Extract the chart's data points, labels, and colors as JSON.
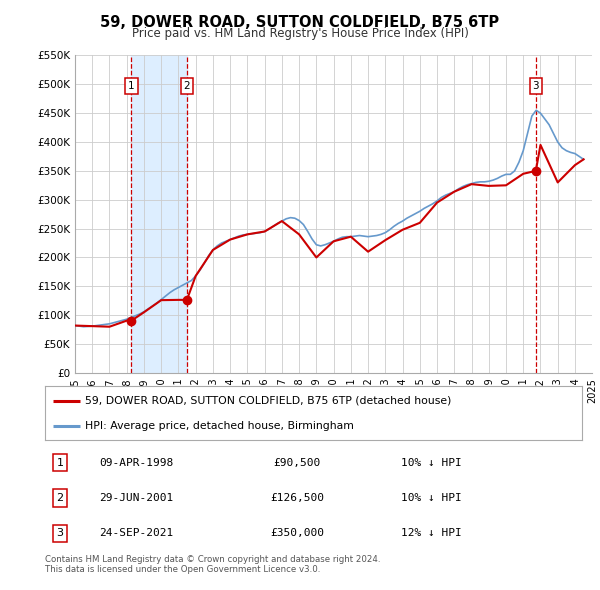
{
  "title": "59, DOWER ROAD, SUTTON COLDFIELD, B75 6TP",
  "subtitle": "Price paid vs. HM Land Registry's House Price Index (HPI)",
  "red_label": "59, DOWER ROAD, SUTTON COLDFIELD, B75 6TP (detached house)",
  "blue_label": "HPI: Average price, detached house, Birmingham",
  "sale_points": [
    {
      "num": 1,
      "date_num": 1998.27,
      "price": 90500,
      "label": "09-APR-1998",
      "price_str": "£90,500",
      "hpi_str": "10% ↓ HPI"
    },
    {
      "num": 2,
      "date_num": 2001.49,
      "price": 126500,
      "label": "29-JUN-2001",
      "price_str": "£126,500",
      "hpi_str": "10% ↓ HPI"
    },
    {
      "num": 3,
      "date_num": 2021.73,
      "price": 350000,
      "label": "24-SEP-2021",
      "price_str": "£350,000",
      "hpi_str": "12% ↓ HPI"
    }
  ],
  "copyright": "Contains HM Land Registry data © Crown copyright and database right 2024.\nThis data is licensed under the Open Government Licence v3.0.",
  "ylim": [
    0,
    550000
  ],
  "xlim": [
    1995,
    2025
  ],
  "yticks": [
    0,
    50000,
    100000,
    150000,
    200000,
    250000,
    300000,
    350000,
    400000,
    450000,
    500000,
    550000
  ],
  "ytick_labels": [
    "£0",
    "£50K",
    "£100K",
    "£150K",
    "£200K",
    "£250K",
    "£300K",
    "£350K",
    "£400K",
    "£450K",
    "£500K",
    "£550K"
  ],
  "xticks": [
    1995,
    1996,
    1997,
    1998,
    1999,
    2000,
    2001,
    2002,
    2003,
    2004,
    2005,
    2006,
    2007,
    2008,
    2009,
    2010,
    2011,
    2012,
    2013,
    2014,
    2015,
    2016,
    2017,
    2018,
    2019,
    2020,
    2021,
    2022,
    2023,
    2024,
    2025
  ],
  "red_color": "#cc0000",
  "blue_color": "#6699cc",
  "shade_color": "#ddeeff",
  "grid_color": "#cccccc",
  "background_color": "#ffffff",
  "vline_color": "#cc0000",
  "hpi_data": {
    "x": [
      1995.0,
      1995.25,
      1995.5,
      1995.75,
      1996.0,
      1996.25,
      1996.5,
      1996.75,
      1997.0,
      1997.25,
      1997.5,
      1997.75,
      1998.0,
      1998.25,
      1998.5,
      1998.75,
      1999.0,
      1999.25,
      1999.5,
      1999.75,
      2000.0,
      2000.25,
      2000.5,
      2000.75,
      2001.0,
      2001.25,
      2001.5,
      2001.75,
      2002.0,
      2002.25,
      2002.5,
      2002.75,
      2003.0,
      2003.25,
      2003.5,
      2003.75,
      2004.0,
      2004.25,
      2004.5,
      2004.75,
      2005.0,
      2005.25,
      2005.5,
      2005.75,
      2006.0,
      2006.25,
      2006.5,
      2006.75,
      2007.0,
      2007.25,
      2007.5,
      2007.75,
      2008.0,
      2008.25,
      2008.5,
      2008.75,
      2009.0,
      2009.25,
      2009.5,
      2009.75,
      2010.0,
      2010.25,
      2010.5,
      2010.75,
      2011.0,
      2011.25,
      2011.5,
      2011.75,
      2012.0,
      2012.25,
      2012.5,
      2012.75,
      2013.0,
      2013.25,
      2013.5,
      2013.75,
      2014.0,
      2014.25,
      2014.5,
      2014.75,
      2015.0,
      2015.25,
      2015.5,
      2015.75,
      2016.0,
      2016.25,
      2016.5,
      2016.75,
      2017.0,
      2017.25,
      2017.5,
      2017.75,
      2018.0,
      2018.25,
      2018.5,
      2018.75,
      2019.0,
      2019.25,
      2019.5,
      2019.75,
      2020.0,
      2020.25,
      2020.5,
      2020.75,
      2021.0,
      2021.25,
      2021.5,
      2021.75,
      2022.0,
      2022.25,
      2022.5,
      2022.75,
      2023.0,
      2023.25,
      2023.5,
      2023.75,
      2024.0,
      2024.25,
      2024.5
    ],
    "y": [
      82000,
      81000,
      80000,
      80500,
      81000,
      82000,
      83000,
      84000,
      85000,
      87000,
      89000,
      91000,
      93000,
      96000,
      99000,
      102000,
      106000,
      111000,
      116000,
      121000,
      127000,
      133000,
      139000,
      144000,
      148000,
      152000,
      156000,
      160000,
      168000,
      178000,
      190000,
      203000,
      213000,
      220000,
      225000,
      228000,
      231000,
      234000,
      237000,
      239000,
      240000,
      241000,
      242000,
      243000,
      245000,
      249000,
      254000,
      259000,
      263000,
      267000,
      269000,
      268000,
      264000,
      257000,
      245000,
      232000,
      222000,
      220000,
      222000,
      225000,
      228000,
      232000,
      235000,
      236000,
      236000,
      237000,
      238000,
      237000,
      236000,
      237000,
      238000,
      240000,
      243000,
      248000,
      254000,
      259000,
      263000,
      268000,
      272000,
      276000,
      280000,
      285000,
      289000,
      293000,
      298000,
      304000,
      308000,
      311000,
      314000,
      319000,
      323000,
      326000,
      328000,
      330000,
      331000,
      331000,
      332000,
      334000,
      337000,
      341000,
      344000,
      344000,
      350000,
      365000,
      385000,
      415000,
      445000,
      455000,
      450000,
      440000,
      430000,
      415000,
      400000,
      390000,
      385000,
      382000,
      380000,
      375000,
      370000
    ]
  },
  "red_data": {
    "x": [
      1995.0,
      1996.0,
      1997.0,
      1998.0,
      1998.27,
      1999.0,
      2000.0,
      2001.0,
      2001.49,
      2002.0,
      2003.0,
      2004.0,
      2005.0,
      2006.0,
      2007.0,
      2008.0,
      2009.0,
      2010.0,
      2011.0,
      2012.0,
      2013.0,
      2014.0,
      2015.0,
      2016.0,
      2017.0,
      2018.0,
      2019.0,
      2020.0,
      2021.0,
      2021.73,
      2022.0,
      2023.0,
      2024.0,
      2024.5
    ],
    "y": [
      82000,
      81000,
      80000,
      90500,
      90500,
      105000,
      126000,
      126500,
      126500,
      168000,
      213000,
      231000,
      240000,
      245000,
      263000,
      240000,
      200000,
      228000,
      236000,
      210000,
      230000,
      248000,
      260000,
      295000,
      314000,
      327000,
      324000,
      325000,
      345000,
      350000,
      395000,
      330000,
      360000,
      370000
    ]
  }
}
